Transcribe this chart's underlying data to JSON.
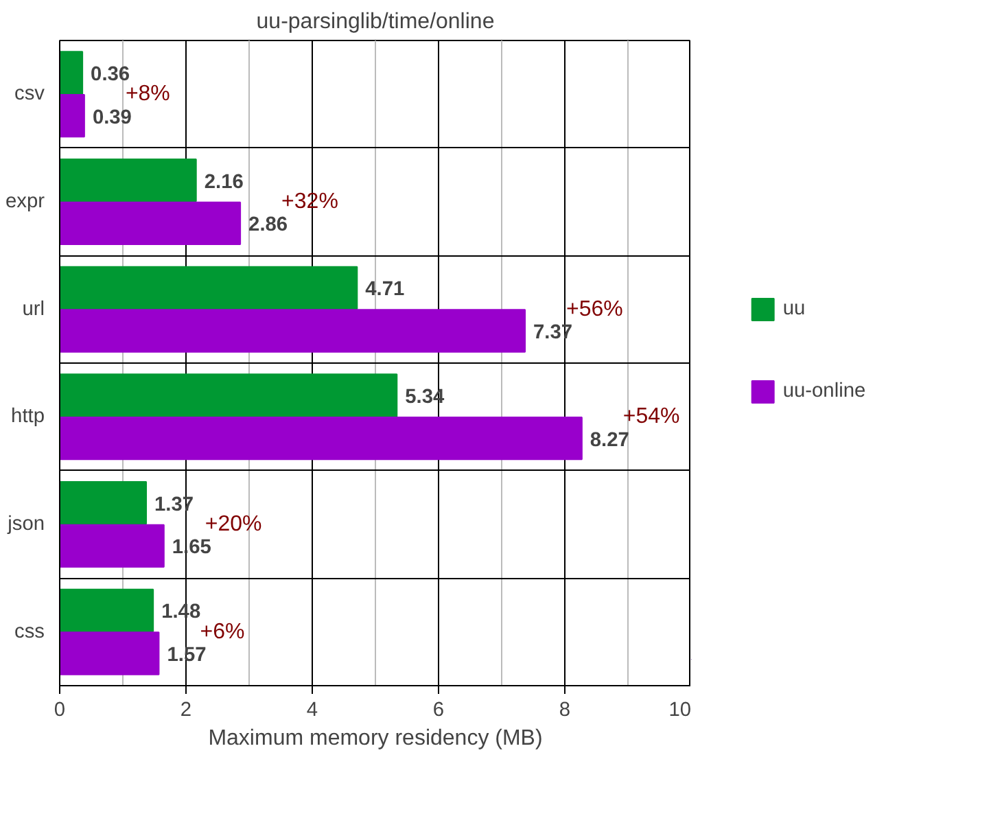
{
  "chart_data": {
    "type": "bar",
    "orientation": "horizontal",
    "title": "uu-parsinglib/time/online",
    "xlabel": "Maximum memory residency (MB)",
    "categories": [
      "csv",
      "expr",
      "url",
      "http",
      "json",
      "css"
    ],
    "series": [
      {
        "name": "uu",
        "color": "#009933",
        "values": [
          0.36,
          2.16,
          4.71,
          5.34,
          1.37,
          1.48
        ]
      },
      {
        "name": "uu-online",
        "color": "#9900cc",
        "values": [
          0.39,
          2.86,
          7.37,
          8.27,
          1.65,
          1.57
        ]
      }
    ],
    "xlim": [
      0,
      10
    ],
    "xticks": [
      0,
      {
        "value": 1,
        "label": null
      },
      2,
      {
        "value": 3,
        "label": null
      },
      4,
      {
        "value": 5,
        "label": null
      },
      6,
      {
        "value": 7,
        "label": null
      },
      8,
      {
        "value": 9,
        "label": null
      },
      10
    ],
    "data_labels": true,
    "grid": true,
    "legend": "right",
    "annotations": [
      "+8%",
      "+32%",
      "+56%",
      "+54%",
      "+20%",
      "+6%"
    ]
  }
}
